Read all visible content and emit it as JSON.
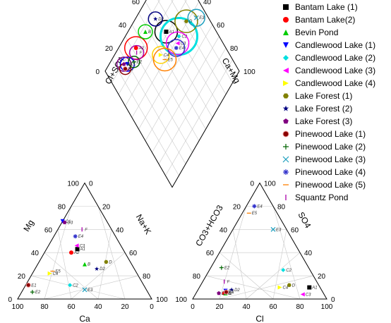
{
  "chart_data": {
    "type": "scatter",
    "subtype": "piper-diagram",
    "grid": true,
    "legend_position": "right",
    "cation_triangle": {
      "axes": {
        "bottom": "Ca",
        "left": "Mg",
        "right": "Na+K"
      },
      "ticks": [
        "0",
        "20",
        "40",
        "60",
        "80",
        "100"
      ]
    },
    "anion_triangle": {
      "axes": {
        "bottom": "Cl",
        "left": "CO3+HCO3",
        "right": "SO4"
      },
      "ticks": [
        "0",
        "20",
        "40",
        "60",
        "80",
        "100"
      ]
    },
    "diamond": {
      "axes": {
        "upper_left": "Cl+SO4",
        "upper_right": "Ca+Mg"
      },
      "ticks": [
        "0",
        "20",
        "40",
        "60",
        "80",
        "100"
      ]
    },
    "series": [
      {
        "name": "Bantam Lake (1)",
        "code": "A1",
        "marker": "square",
        "color": "#000000",
        "cation": {
          "ca": 34,
          "mg": 43
        },
        "anion": {
          "cl": 82,
          "so4": 10
        },
        "diamond": {
          "x": 57,
          "y": 34
        },
        "circle": 8
      },
      {
        "name": "Bantam Lake(2)",
        "code": "A2",
        "marker": "circle",
        "color": "#ff0000",
        "cation": {
          "ca": 40,
          "mg": 40
        },
        "anion": {
          "cl": 21,
          "so4": 5
        },
        "diamond": {
          "x": 26,
          "y": 20
        },
        "circle": 8
      },
      {
        "name": "Bevin Pond",
        "code": "B",
        "marker": "triangle-up",
        "color": "#00cc00",
        "cation": {
          "ca": 35,
          "mg": 30
        },
        "anion": {
          "cl": 22,
          "so4": 5
        },
        "diamond": {
          "x": 26,
          "y": 34
        },
        "circle": 5
      },
      {
        "name": "Candlewood Lake (1)",
        "code": "C1",
        "marker": "triangle-down",
        "color": "#0000ff",
        "cation": {
          "ca": 33,
          "mg": 67
        },
        "anion": {
          "cl": 21,
          "so4": 7
        },
        "diamond": {
          "x": 27,
          "y": 6
        },
        "circle": 5
      },
      {
        "name": "Candlewood Lake (2)",
        "code": "C2",
        "marker": "diamond",
        "color": "#00e0e0",
        "cation": {
          "ca": 55,
          "mg": 12
        },
        "anion": {
          "cl": 55,
          "so4": 25
        },
        "diamond": {
          "x": 80,
          "y": 30
        },
        "circle": 13
      },
      {
        "name": "Candlewood Lake (3)",
        "code": "C3",
        "marker": "triangle-left",
        "color": "#ff00ff",
        "cation": {
          "ca": 33,
          "mg": 46
        },
        "anion": {
          "cl": 80,
          "so4": 4
        },
        "diamond": {
          "x": 84,
          "y": 24
        },
        "circle": 8
      },
      {
        "name": "Candlewood Lake (4)",
        "code": "C4",
        "marker": "triangle-right",
        "color": "#ffff00",
        "cation": {
          "ca": 65,
          "mg": 22
        },
        "anion": {
          "cl": 60,
          "so4": 10
        },
        "diamond": {
          "x": 69,
          "y": 14
        },
        "circle": 6
      },
      {
        "name": "Lake Forest (1)",
        "code": "D",
        "marker": "hexagon",
        "color": "#808000",
        "cation": {
          "ca": 18,
          "mg": 32
        },
        "anion": {
          "cl": 66,
          "so4": 12
        },
        "diamond": {
          "x": 78,
          "y": 43
        },
        "circle": 8
      },
      {
        "name": "Lake Forest (2)",
        "code": "D2",
        "marker": "star",
        "color": "#000080",
        "cation": {
          "ca": 28,
          "mg": 26
        },
        "anion": {
          "cl": 25,
          "so4": 8
        },
        "diamond": {
          "x": 30,
          "y": 45
        },
        "circle": 5
      },
      {
        "name": "Lake Forest (3)",
        "code": "D3",
        "marker": "pentagon",
        "color": "#800080",
        "cation": {
          "ca": 32,
          "mg": 66
        },
        "anion": {
          "cl": 17,
          "so4": 5
        },
        "diamond": {
          "x": 22,
          "y": 6
        },
        "circle": 5
      },
      {
        "name": "Pinewood Lake (1)",
        "code": "E1",
        "marker": "ball",
        "color": "#8b0000",
        "cation": {
          "ca": 86,
          "mg": 12
        },
        "anion": {
          "cl": 22,
          "so4": 6
        },
        "diamond": {
          "x": 28,
          "y": 2
        },
        "circle": 4
      },
      {
        "name": "Pinewood Lake (2)",
        "code": "E2",
        "marker": "plus",
        "color": "#006400",
        "cation": {
          "ca": 86,
          "mg": 6
        },
        "anion": {
          "cl": 8,
          "so4": 27
        },
        "diamond": {
          "x": 35,
          "y": 8
        },
        "circle": 4
      },
      {
        "name": "Pinewood Lake (3)",
        "code": "E3",
        "marker": "x",
        "color": "#1e9fbf",
        "cation": {
          "ca": 46,
          "mg": 8
        },
        "anion": {
          "cl": 30,
          "so4": 60
        },
        "diamond": {
          "x": 90,
          "y": 46
        },
        "circle": 6
      },
      {
        "name": "Pinewood Lake (4)",
        "code": "E4",
        "marker": "asterisk",
        "color": "#3333cc",
        "cation": {
          "ca": 30,
          "mg": 54
        },
        "anion": {
          "cl": 6,
          "so4": 80
        },
        "diamond": {
          "x": 86,
          "y": 20
        },
        "circle": 6
      },
      {
        "name": "Pinewood Lake (5)",
        "code": "E5",
        "marker": "dash",
        "color": "#ff8000",
        "cation": {
          "ca": 62,
          "mg": 24
        },
        "anion": {
          "cl": 5,
          "so4": 74
        },
        "diamond": {
          "x": 79,
          "y": 10
        },
        "circle": 8
      },
      {
        "name": "Squantz Pond",
        "code": "F",
        "marker": "vbar",
        "color": "#aa00aa",
        "cation": {
          "ca": 22,
          "mg": 60
        },
        "anion": {
          "cl": 16,
          "so4": 15
        },
        "diamond": {
          "x": 31,
          "y": 16
        },
        "circle": 5
      }
    ]
  }
}
